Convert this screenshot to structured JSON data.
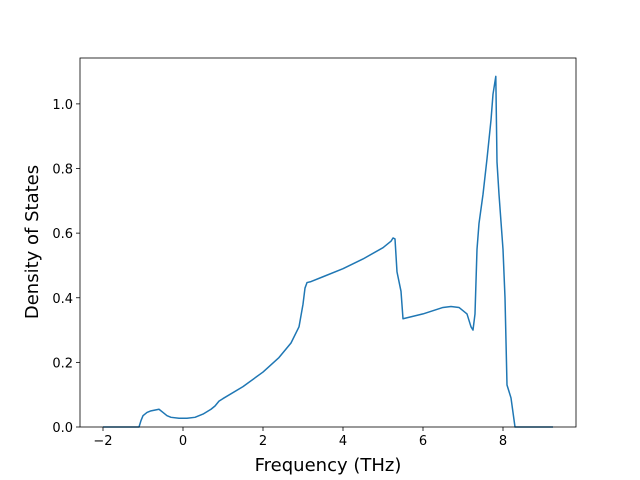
{
  "chart_data": {
    "type": "line",
    "x_label": "Frequency (THz)",
    "y_label": "Density of States",
    "x": [
      -2,
      -1.1,
      -1.05,
      -1,
      -0.9,
      -0.8,
      -0.6,
      -0.5,
      -0.4,
      -0.3,
      -0.1,
      0.1,
      0.3,
      0.5,
      0.7,
      0.8,
      0.9,
      1.0,
      1.5,
      2.0,
      2.4,
      2.7,
      2.9,
      3.0,
      3.05,
      3.1,
      3.2,
      3.5,
      4.0,
      4.5,
      5.0,
      5.2,
      5.25,
      5.3,
      5.35,
      5.45,
      5.5,
      6.0,
      6.5,
      6.7,
      6.9,
      7.1,
      7.2,
      7.25,
      7.3,
      7.35,
      7.4,
      7.5,
      7.6,
      7.7,
      7.75,
      7.82,
      7.85,
      7.9,
      8.0,
      8.05,
      8.1,
      8.2,
      8.3,
      9.25
    ],
    "series": [
      {
        "color": "#1f77b4",
        "values": [
          0,
          0,
          0.02,
          0.035,
          0.045,
          0.05,
          0.055,
          0.045,
          0.035,
          0.03,
          0.027,
          0.027,
          0.03,
          0.04,
          0.055,
          0.065,
          0.08,
          0.088,
          0.125,
          0.17,
          0.215,
          0.26,
          0.31,
          0.38,
          0.43,
          0.447,
          0.45,
          0.465,
          0.49,
          0.52,
          0.555,
          0.575,
          0.585,
          0.582,
          0.48,
          0.42,
          0.335,
          0.35,
          0.37,
          0.373,
          0.37,
          0.35,
          0.31,
          0.3,
          0.35,
          0.55,
          0.63,
          0.72,
          0.83,
          0.95,
          1.03,
          1.085,
          0.82,
          0.72,
          0.55,
          0.4,
          0.13,
          0.09,
          0,
          0
        ]
      }
    ],
    "xlim": [
      -2.575,
      9.825
    ],
    "ylim": [
      0,
      1.142
    ],
    "xticks": [
      {
        "value": -2,
        "label": "−2"
      },
      0,
      2,
      4,
      6,
      8
    ],
    "yticks": [
      {
        "value": 0,
        "label": "0.0"
      },
      0.2,
      0.4,
      0.6,
      0.8,
      {
        "value": 1,
        "label": "1.0"
      }
    ]
  }
}
